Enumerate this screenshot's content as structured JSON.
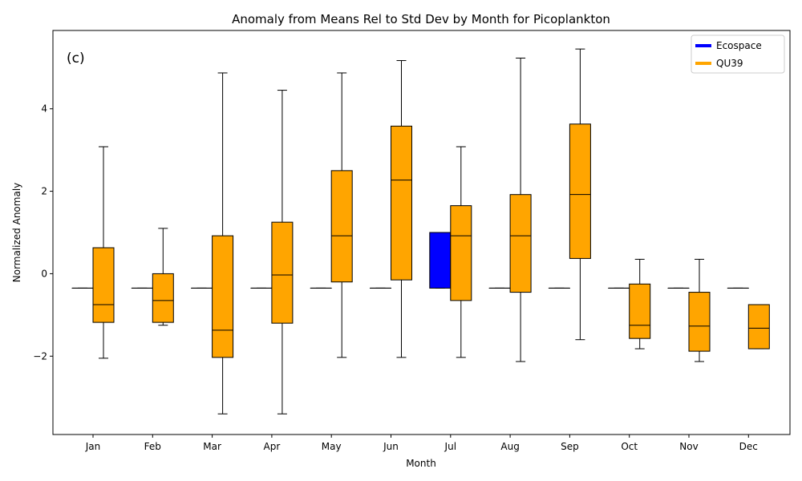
{
  "chart_data": {
    "type": "box",
    "title": "Anomaly from Means Rel to Std Dev by Month for Picoplankton",
    "xlabel": "Month",
    "ylabel": "Normalized Anomaly",
    "panel_label": "(c)",
    "ylim": [
      -3.9,
      5.9
    ],
    "yticks": [
      -2,
      0,
      2,
      4
    ],
    "ytick_labels": [
      "−2",
      "0",
      "2",
      "4"
    ],
    "grid": false,
    "legend_position": "top-right",
    "categories": [
      "Jan",
      "Feb",
      "Mar",
      "Apr",
      "May",
      "Jun",
      "Jul",
      "Aug",
      "Sep",
      "Oct",
      "Nov",
      "Dec"
    ],
    "series": [
      {
        "name": "Ecospace",
        "color": "#0000ff",
        "boxes": [
          {
            "whislo": -0.35,
            "q1": -0.35,
            "med": -0.35,
            "q3": -0.35,
            "whishi": -0.35
          },
          {
            "whislo": -0.35,
            "q1": -0.35,
            "med": -0.35,
            "q3": -0.35,
            "whishi": -0.35
          },
          {
            "whislo": -0.35,
            "q1": -0.35,
            "med": -0.35,
            "q3": -0.35,
            "whishi": -0.35
          },
          {
            "whislo": -0.35,
            "q1": -0.35,
            "med": -0.35,
            "q3": -0.35,
            "whishi": -0.35
          },
          {
            "whislo": -0.35,
            "q1": -0.35,
            "med": -0.35,
            "q3": -0.35,
            "whishi": -0.35
          },
          {
            "whislo": -0.35,
            "q1": -0.35,
            "med": -0.35,
            "q3": -0.35,
            "whishi": -0.35
          },
          {
            "whislo": -0.35,
            "q1": -0.35,
            "med": 1.0,
            "q3": 1.0,
            "whishi": 1.0
          },
          {
            "whislo": -0.35,
            "q1": -0.35,
            "med": -0.35,
            "q3": -0.35,
            "whishi": -0.35
          },
          {
            "whislo": -0.35,
            "q1": -0.35,
            "med": -0.35,
            "q3": -0.35,
            "whishi": -0.35
          },
          {
            "whislo": -0.35,
            "q1": -0.35,
            "med": -0.35,
            "q3": -0.35,
            "whishi": -0.35
          },
          {
            "whislo": -0.35,
            "q1": -0.35,
            "med": -0.35,
            "q3": -0.35,
            "whishi": -0.35
          },
          {
            "whislo": -0.35,
            "q1": -0.35,
            "med": -0.35,
            "q3": -0.35,
            "whishi": -0.35
          }
        ]
      },
      {
        "name": "QU39",
        "color": "#ffa500",
        "boxes": [
          {
            "whislo": -2.05,
            "q1": -1.18,
            "med": -0.75,
            "q3": 0.63,
            "whishi": 3.08
          },
          {
            "whislo": -1.25,
            "q1": -1.18,
            "med": -0.65,
            "q3": 0.0,
            "whishi": 1.1
          },
          {
            "whislo": -3.4,
            "q1": -2.03,
            "med": -1.37,
            "q3": 0.92,
            "whishi": 4.87
          },
          {
            "whislo": -3.4,
            "q1": -1.2,
            "med": -0.03,
            "q3": 1.25,
            "whishi": 4.45
          },
          {
            "whislo": -2.03,
            "q1": -0.2,
            "med": 0.92,
            "q3": 2.5,
            "whishi": 4.87
          },
          {
            "whislo": -2.03,
            "q1": -0.15,
            "med": 2.27,
            "q3": 3.58,
            "whishi": 5.17
          },
          {
            "whislo": -2.03,
            "q1": -0.65,
            "med": 0.92,
            "q3": 1.65,
            "whishi": 3.08
          },
          {
            "whislo": -2.13,
            "q1": -0.45,
            "med": 0.92,
            "q3": 1.92,
            "whishi": 5.23
          },
          {
            "whislo": -1.6,
            "q1": 0.37,
            "med": 1.92,
            "q3": 3.63,
            "whishi": 5.45
          },
          {
            "whislo": -1.82,
            "q1": -1.57,
            "med": -1.25,
            "q3": -0.25,
            "whishi": 0.35
          },
          {
            "whislo": -2.13,
            "q1": -1.88,
            "med": -1.27,
            "q3": -0.45,
            "whishi": 0.35
          },
          {
            "whislo": -1.82,
            "q1": -1.82,
            "med": -1.32,
            "q3": -0.75,
            "whishi": -0.75
          }
        ]
      }
    ]
  }
}
